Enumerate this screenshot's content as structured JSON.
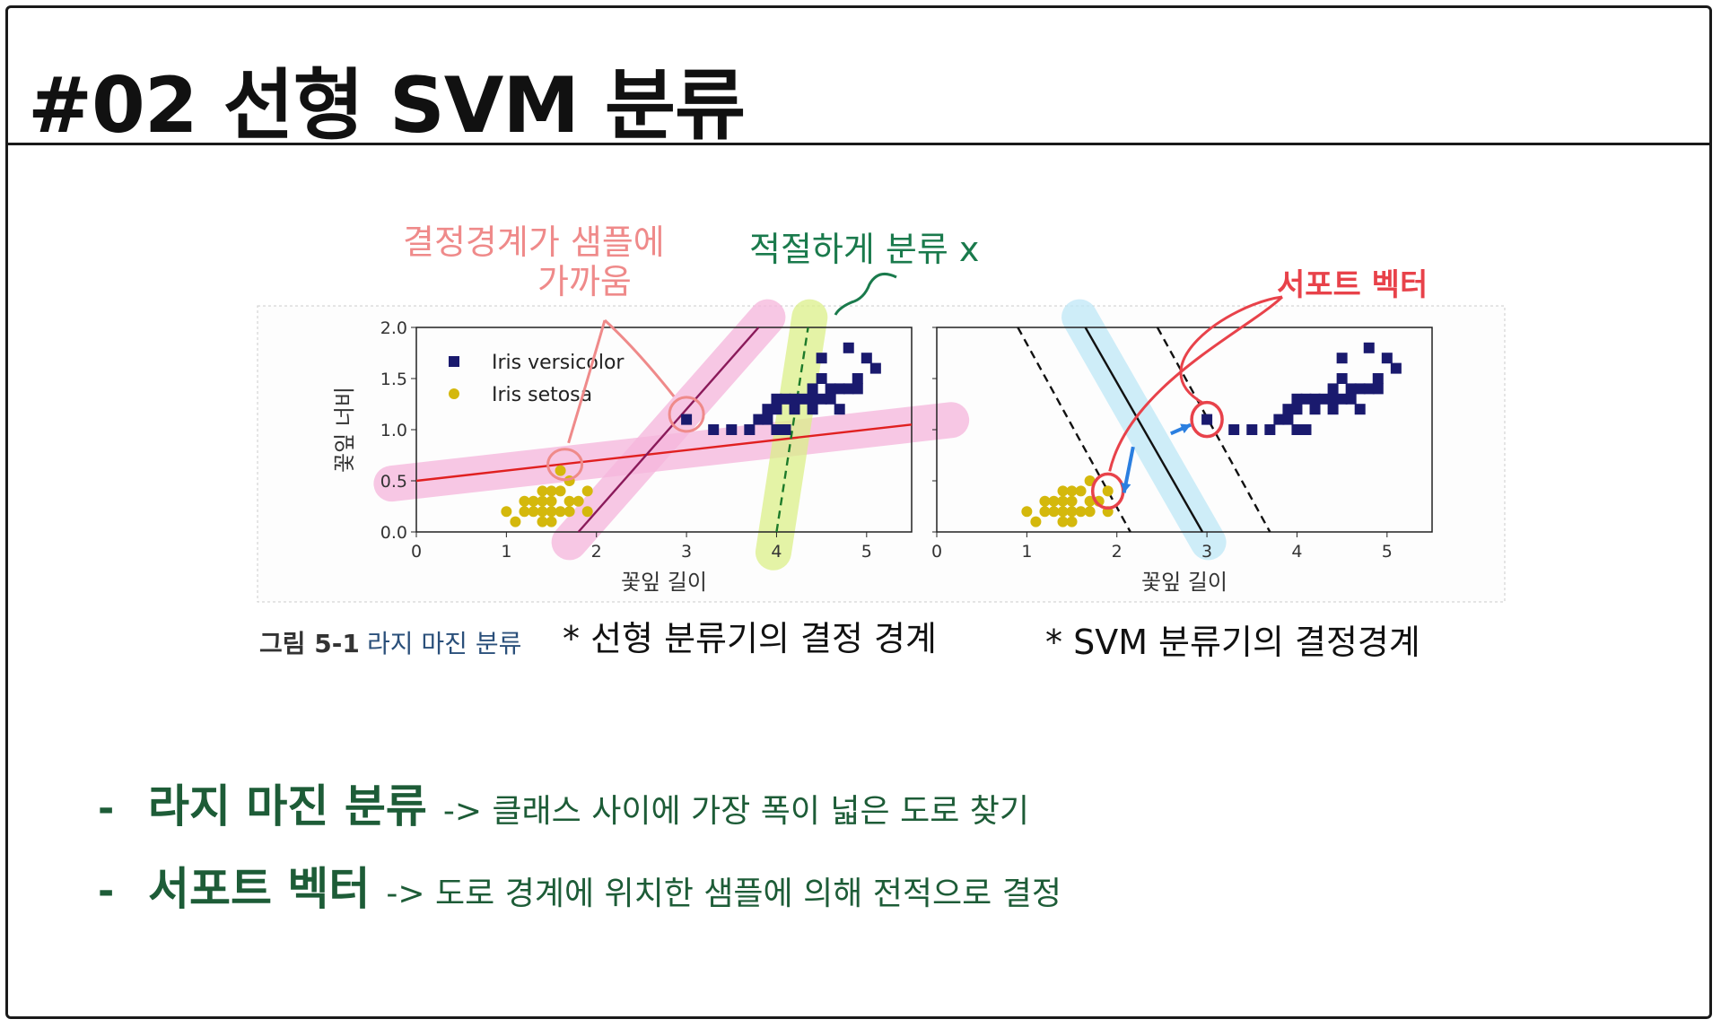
{
  "slide": {
    "title": "#02 선형 SVM 분류",
    "bullets": [
      {
        "marker": "-",
        "term": "라지 마진 분류",
        "desc": "-> 클래스 사이에 가장 폭이 넓은 도로 찾기"
      },
      {
        "marker": "-",
        "term": "서포트 벡터",
        "desc": "-> 도로 경계에 위치한 샘플에 의해 전적으로 결정"
      }
    ],
    "colors": {
      "accent_green": "#1d5c37",
      "dark_text": "#111111"
    }
  },
  "figure": {
    "caption_prefix": "그림 5-1",
    "caption_text": "라지 마진 분류",
    "annotations": {
      "close_boundary": [
        "결정경계가 샘플에",
        "가까움"
      ],
      "bad_split": "적절하게 분류 x",
      "support_vector": "서포트 벡터",
      "left_note": "* 선형 분류기의 결정 경계",
      "right_note": "* SVM 분류기의 결정경계"
    },
    "colors": {
      "annotation_pink": "#ef8a8a",
      "annotation_green": "#1a7a4c",
      "annotation_red": "#e8424a",
      "highlight_pink": "#f6b6dc",
      "highlight_green": "#dcf08a",
      "highlight_blue": "#bfe8f7",
      "arrow_blue": "#2b7fe0"
    }
  },
  "chart_data": [
    {
      "type": "scatter",
      "title": "",
      "xlabel": "꽃잎 길이",
      "ylabel": "꽃잎 너비",
      "xlim": [
        0,
        5.5
      ],
      "ylim": [
        0,
        2
      ],
      "xticks": [
        "0",
        "1",
        "2",
        "3",
        "4",
        "5"
      ],
      "yticks": [
        "0.0",
        "0.5",
        "1.0",
        "1.5",
        "2.0"
      ],
      "legend": {
        "placement": "top-left",
        "entries": [
          "Iris versicolor",
          "Iris setosa"
        ]
      },
      "series": [
        {
          "name": "Iris versicolor",
          "marker": "square",
          "color": "#1a1a6e",
          "points": [
            [
              3.0,
              1.1
            ],
            [
              3.3,
              1.0
            ],
            [
              3.5,
              1.0
            ],
            [
              3.7,
              1.0
            ],
            [
              3.8,
              1.1
            ],
            [
              3.9,
              1.1
            ],
            [
              3.9,
              1.2
            ],
            [
              4.0,
              1.0
            ],
            [
              4.0,
              1.2
            ],
            [
              4.0,
              1.3
            ],
            [
              4.1,
              1.0
            ],
            [
              4.1,
              1.3
            ],
            [
              4.2,
              1.2
            ],
            [
              4.2,
              1.3
            ],
            [
              4.3,
              1.3
            ],
            [
              4.4,
              1.2
            ],
            [
              4.4,
              1.3
            ],
            [
              4.4,
              1.4
            ],
            [
              4.5,
              1.3
            ],
            [
              4.5,
              1.5
            ],
            [
              4.6,
              1.3
            ],
            [
              4.6,
              1.4
            ],
            [
              4.7,
              1.2
            ],
            [
              4.7,
              1.4
            ],
            [
              4.8,
              1.4
            ],
            [
              4.8,
              1.8
            ],
            [
              4.9,
              1.5
            ],
            [
              5.0,
              1.7
            ],
            [
              5.1,
              1.6
            ],
            [
              4.5,
              1.7
            ],
            [
              4.9,
              1.4
            ]
          ]
        },
        {
          "name": "Iris setosa",
          "marker": "circle",
          "color": "#d4b80c",
          "points": [
            [
              1.0,
              0.2
            ],
            [
              1.1,
              0.1
            ],
            [
              1.2,
              0.2
            ],
            [
              1.3,
              0.2
            ],
            [
              1.3,
              0.3
            ],
            [
              1.4,
              0.1
            ],
            [
              1.4,
              0.2
            ],
            [
              1.4,
              0.3
            ],
            [
              1.5,
              0.1
            ],
            [
              1.5,
              0.2
            ],
            [
              1.5,
              0.3
            ],
            [
              1.5,
              0.4
            ],
            [
              1.6,
              0.2
            ],
            [
              1.6,
              0.4
            ],
            [
              1.7,
              0.2
            ],
            [
              1.7,
              0.3
            ],
            [
              1.7,
              0.5
            ],
            [
              1.9,
              0.2
            ],
            [
              1.9,
              0.4
            ],
            [
              1.6,
              0.6
            ],
            [
              1.4,
              0.4
            ],
            [
              1.2,
              0.3
            ],
            [
              1.8,
              0.3
            ]
          ]
        }
      ],
      "lines": [
        {
          "label": "red line",
          "color": "#e02020",
          "style": "solid",
          "points": [
            [
              0,
              0.5
            ],
            [
              5.5,
              1.05
            ]
          ]
        },
        {
          "label": "purple line",
          "color": "#8a1a5a",
          "style": "solid",
          "points": [
            [
              1.8,
              0.0
            ],
            [
              3.8,
              2.0
            ]
          ]
        },
        {
          "label": "green dashed line",
          "color": "#1d7a2a",
          "style": "dashed",
          "points": [
            [
              4.0,
              0.0
            ],
            [
              4.35,
              2.0
            ]
          ]
        }
      ]
    },
    {
      "type": "scatter",
      "title": "",
      "xlabel": "꽃잎 길이",
      "ylabel": "",
      "xlim": [
        0,
        5.5
      ],
      "ylim": [
        0,
        2
      ],
      "xticks": [
        "0",
        "1",
        "2",
        "3",
        "4",
        "5"
      ],
      "series": [
        {
          "name": "Iris versicolor",
          "marker": "square",
          "color": "#1a1a6e",
          "points": [
            [
              3.0,
              1.1
            ],
            [
              3.3,
              1.0
            ],
            [
              3.5,
              1.0
            ],
            [
              3.7,
              1.0
            ],
            [
              3.8,
              1.1
            ],
            [
              3.9,
              1.1
            ],
            [
              3.9,
              1.2
            ],
            [
              4.0,
              1.0
            ],
            [
              4.0,
              1.2
            ],
            [
              4.0,
              1.3
            ],
            [
              4.1,
              1.0
            ],
            [
              4.1,
              1.3
            ],
            [
              4.2,
              1.2
            ],
            [
              4.2,
              1.3
            ],
            [
              4.3,
              1.3
            ],
            [
              4.4,
              1.2
            ],
            [
              4.4,
              1.3
            ],
            [
              4.4,
              1.4
            ],
            [
              4.5,
              1.3
            ],
            [
              4.5,
              1.5
            ],
            [
              4.6,
              1.3
            ],
            [
              4.6,
              1.4
            ],
            [
              4.7,
              1.2
            ],
            [
              4.7,
              1.4
            ],
            [
              4.8,
              1.4
            ],
            [
              4.8,
              1.8
            ],
            [
              4.9,
              1.5
            ],
            [
              5.0,
              1.7
            ],
            [
              5.1,
              1.6
            ],
            [
              4.5,
              1.7
            ],
            [
              4.9,
              1.4
            ]
          ]
        },
        {
          "name": "Iris setosa",
          "marker": "circle",
          "color": "#d4b80c",
          "points": [
            [
              1.0,
              0.2
            ],
            [
              1.1,
              0.1
            ],
            [
              1.2,
              0.2
            ],
            [
              1.3,
              0.2
            ],
            [
              1.3,
              0.3
            ],
            [
              1.4,
              0.1
            ],
            [
              1.4,
              0.2
            ],
            [
              1.4,
              0.3
            ],
            [
              1.5,
              0.1
            ],
            [
              1.5,
              0.2
            ],
            [
              1.5,
              0.3
            ],
            [
              1.5,
              0.4
            ],
            [
              1.6,
              0.2
            ],
            [
              1.6,
              0.4
            ],
            [
              1.7,
              0.2
            ],
            [
              1.7,
              0.3
            ],
            [
              1.7,
              0.5
            ],
            [
              1.9,
              0.2
            ],
            [
              1.9,
              0.4
            ],
            [
              1.4,
              0.4
            ],
            [
              1.2,
              0.3
            ],
            [
              1.8,
              0.3
            ]
          ]
        }
      ],
      "lines": [
        {
          "label": "decision boundary",
          "color": "#111111",
          "style": "solid",
          "points": [
            [
              1.65,
              2.0
            ],
            [
              2.95,
              0.0
            ]
          ]
        },
        {
          "label": "margin upper",
          "color": "#111111",
          "style": "dashed",
          "points": [
            [
              2.45,
              2.0
            ],
            [
              3.7,
              0.0
            ]
          ]
        },
        {
          "label": "margin lower",
          "color": "#111111",
          "style": "dashed",
          "points": [
            [
              0.9,
              2.0
            ],
            [
              2.15,
              0.0
            ]
          ]
        }
      ],
      "support_vectors": [
        [
          1.9,
          0.4
        ],
        [
          3.0,
          1.1
        ]
      ]
    }
  ]
}
